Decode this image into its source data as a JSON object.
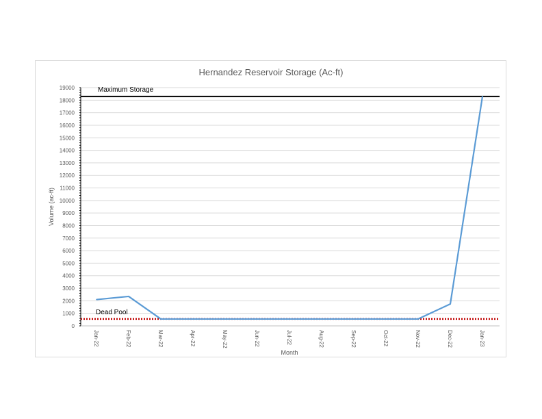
{
  "chart_data": {
    "type": "line",
    "title": "Hernandez Reservoir Storage (Ac-ft)",
    "xlabel": "Month",
    "ylabel": "Volume (ac-ft)",
    "ylim": [
      0,
      19000
    ],
    "yticks": [
      0,
      1000,
      2000,
      3000,
      4000,
      5000,
      6000,
      7000,
      8000,
      9000,
      10000,
      11000,
      12000,
      13000,
      14000,
      15000,
      16000,
      17000,
      18000,
      19000
    ],
    "categories": [
      "Jan-22",
      "Feb-22",
      "Mar-22",
      "Apr-22",
      "May-22",
      "Jun-22",
      "Jul-22",
      "Aug-22",
      "Sep-22",
      "Oct-22",
      "Nov-22",
      "Dec-22",
      "Jan-23"
    ],
    "series": [
      {
        "values": [
          2100,
          2350,
          550,
          550,
          550,
          550,
          550,
          550,
          550,
          550,
          550,
          1750,
          18300
        ],
        "color": "#5b9bd5"
      }
    ],
    "reference_lines": [
      {
        "label": "Maximum Storage",
        "value": 18300,
        "color": "#000000",
        "style": "solid"
      },
      {
        "label": "Dead Pool",
        "value": 550,
        "color": "#c00000",
        "style": "dotted"
      }
    ],
    "grid": true,
    "legend": "none"
  }
}
